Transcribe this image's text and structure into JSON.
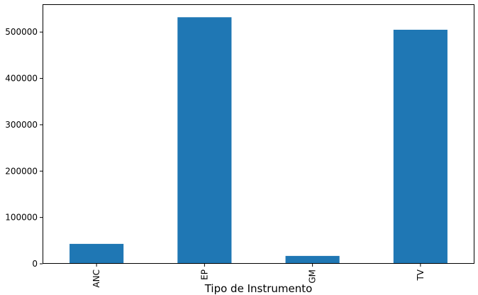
{
  "chart_data": {
    "type": "bar",
    "title": "",
    "xlabel": "Tipo de Instrumento",
    "ylabel": "",
    "categories": [
      "ANC",
      "EP",
      "GM",
      "TV"
    ],
    "values": [
      43000,
      532000,
      17000,
      505000
    ],
    "ylim": [
      0,
      560000
    ],
    "yticks": [
      0,
      100000,
      200000,
      300000,
      400000,
      500000
    ],
    "ytick_labels": [
      "0",
      "100000",
      "200000",
      "300000",
      "400000",
      "500000"
    ],
    "bar_color": "#1f77b4",
    "grid": false,
    "legend": "none"
  }
}
